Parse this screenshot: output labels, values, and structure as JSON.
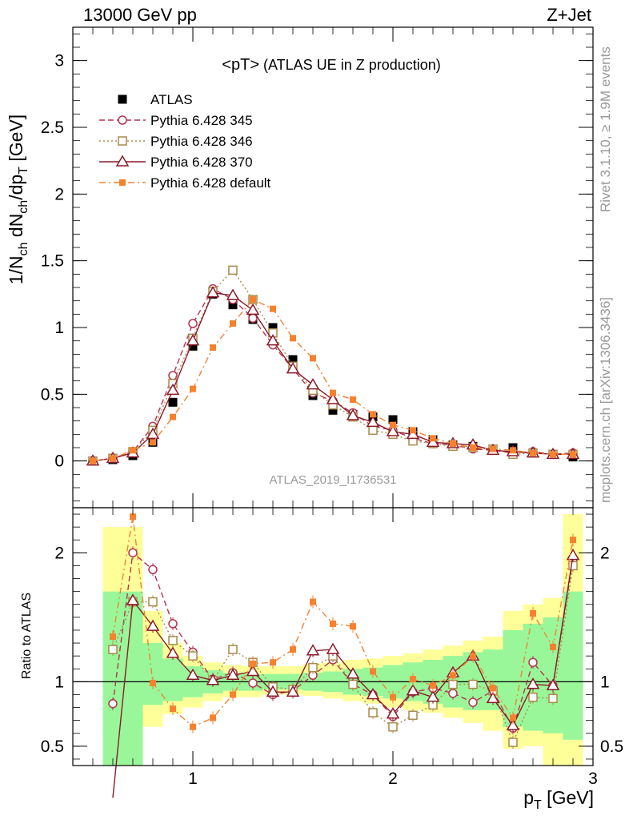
{
  "header": {
    "left": "13000 GeV pp",
    "right": "Z+Jet"
  },
  "plot_title": {
    "main": "<pT>",
    "sub": "(ATLAS UE in Z production)"
  },
  "side_labels": {
    "rivet": "Rivet 3.1.10, ≥ 1.9M events",
    "mcplots": "mcplots.cern.ch [arXiv:1306.3436]"
  },
  "watermark": "ATLAS_2019_I1736531",
  "axes": {
    "ylabel_main": "1/N_ch dN_ch/dp_T [GeV]",
    "ylabel_ratio": "Ratio to ATLAS",
    "xlabel": "p_T [GeV]"
  },
  "colors": {
    "data": "#000000",
    "p345": "#b4344f",
    "p346": "#a88a4c",
    "p370": "#8b1a2a",
    "pdef": "#f58230",
    "band_inner": "#99f799",
    "band_outer": "#ffff99"
  },
  "chart_data": [
    {
      "type": "line",
      "panel": "main",
      "xlim": [
        0.4,
        3.0
      ],
      "ylim": [
        -0.35,
        3.25
      ],
      "xticks": [
        1,
        2,
        3
      ],
      "yticks": [
        0,
        0.5,
        1,
        1.5,
        2,
        2.5,
        3
      ],
      "ytick_labels": [
        "0",
        "0.5",
        "1",
        "1.5",
        "2",
        "2.5",
        "3"
      ],
      "x": [
        0.5,
        0.6,
        0.7,
        0.8,
        0.9,
        1.0,
        1.1,
        1.2,
        1.3,
        1.4,
        1.5,
        1.6,
        1.7,
        1.8,
        1.9,
        2.0,
        2.1,
        2.2,
        2.3,
        2.4,
        2.5,
        2.6,
        2.7,
        2.8,
        2.9
      ],
      "legend": "top-left",
      "series": [
        {
          "name": "ATLAS",
          "style": "data",
          "values": [
            0.0,
            0.01,
            0.04,
            0.14,
            0.44,
            0.86,
            1.25,
            1.17,
            1.06,
            1.0,
            0.76,
            0.49,
            0.38,
            0.35,
            0.33,
            0.31,
            0.22,
            0.16,
            0.12,
            0.11,
            0.09,
            0.1,
            0.06,
            0.05,
            0.03
          ]
        },
        {
          "name": "Pythia 6.428 345",
          "style": "p345",
          "values": [
            0.0,
            0.02,
            0.07,
            0.26,
            0.64,
            1.03,
            1.29,
            1.21,
            1.07,
            0.87,
            0.69,
            0.51,
            0.45,
            0.36,
            0.26,
            0.23,
            0.17,
            0.13,
            0.12,
            0.09,
            0.08,
            0.06,
            0.07,
            0.05,
            0.06
          ]
        },
        {
          "name": "Pythia 6.428 346",
          "style": "p346",
          "values": [
            0.0,
            0.02,
            0.07,
            0.23,
            0.58,
            0.92,
            1.27,
            1.43,
            1.21,
            0.96,
            0.71,
            0.53,
            0.42,
            0.33,
            0.23,
            0.2,
            0.15,
            0.13,
            0.11,
            0.1,
            0.09,
            0.05,
            0.06,
            0.05,
            0.05
          ]
        },
        {
          "name": "Pythia 6.428 370",
          "style": "p370",
          "values": [
            0.0,
            0.02,
            0.06,
            0.2,
            0.53,
            0.9,
            1.26,
            1.24,
            1.13,
            0.9,
            0.69,
            0.57,
            0.46,
            0.34,
            0.29,
            0.22,
            0.2,
            0.14,
            0.13,
            0.12,
            0.08,
            0.07,
            0.06,
            0.05,
            0.05
          ]
        },
        {
          "name": "Pythia 6.428 default",
          "style": "pdef",
          "values": [
            0.0,
            0.02,
            0.08,
            0.14,
            0.33,
            0.54,
            0.85,
            1.03,
            1.21,
            1.14,
            0.92,
            0.77,
            0.51,
            0.46,
            0.35,
            0.27,
            0.23,
            0.17,
            0.13,
            0.1,
            0.09,
            0.08,
            0.06,
            0.05,
            0.05
          ]
        }
      ]
    },
    {
      "type": "line",
      "panel": "ratio",
      "xlim": [
        0.4,
        3.0
      ],
      "ylim": [
        0.35,
        2.35
      ],
      "xticks": [
        1,
        2,
        3
      ],
      "xtick_labels": [
        "1",
        "2",
        "3"
      ],
      "yticks": [
        0.5,
        1,
        2
      ],
      "ytick_labels": [
        "0.5",
        "1",
        "2"
      ],
      "x": [
        0.6,
        0.7,
        0.8,
        0.9,
        1.0,
        1.1,
        1.2,
        1.3,
        1.4,
        1.5,
        1.6,
        1.7,
        1.8,
        1.9,
        2.0,
        2.1,
        2.2,
        2.3,
        2.4,
        2.5,
        2.6,
        2.7,
        2.8,
        2.9
      ],
      "band_edges": [
        0.55,
        0.65,
        0.75,
        0.85,
        0.95,
        1.05,
        1.15,
        1.25,
        1.35,
        1.45,
        1.55,
        1.65,
        1.75,
        1.85,
        1.95,
        2.05,
        2.15,
        2.25,
        2.35,
        2.45,
        2.55,
        2.65,
        2.75,
        2.85,
        2.95
      ],
      "band_inner_lo": [
        0.0,
        0.0,
        0.82,
        0.85,
        0.88,
        0.91,
        0.93,
        0.93,
        0.94,
        0.94,
        0.93,
        0.92,
        0.9,
        0.89,
        0.87,
        0.85,
        0.83,
        0.8,
        0.78,
        0.78,
        0.65,
        0.62,
        0.6,
        0.55
      ],
      "band_inner_hi": [
        1.7,
        1.7,
        1.3,
        1.18,
        1.12,
        1.09,
        1.07,
        1.06,
        1.06,
        1.06,
        1.07,
        1.08,
        1.1,
        1.11,
        1.13,
        1.15,
        1.17,
        1.2,
        1.23,
        1.25,
        1.4,
        1.45,
        1.5,
        1.7
      ],
      "band_outer_lo": [
        0.0,
        0.0,
        0.65,
        0.75,
        0.8,
        0.85,
        0.88,
        0.88,
        0.9,
        0.9,
        0.89,
        0.87,
        0.85,
        0.83,
        0.8,
        0.78,
        0.76,
        0.72,
        0.68,
        0.62,
        0.48,
        0.5,
        0.3,
        0.3
      ],
      "band_outer_hi": [
        2.2,
        2.2,
        1.55,
        1.3,
        1.2,
        1.15,
        1.13,
        1.12,
        1.12,
        1.12,
        1.14,
        1.15,
        1.17,
        1.18,
        1.2,
        1.22,
        1.25,
        1.28,
        1.32,
        1.35,
        1.55,
        1.6,
        1.65,
        2.3
      ],
      "series": [
        {
          "name": "ATLAS",
          "style": "data",
          "values": [
            1,
            1,
            1,
            1,
            1,
            1,
            1,
            1,
            1,
            1,
            1,
            1,
            1,
            1,
            1,
            1,
            1,
            1,
            1,
            1,
            1,
            1,
            1,
            1
          ]
        },
        {
          "name": "Pythia 6.428 345",
          "style": "p345",
          "values": [
            0.83,
            2.0,
            1.87,
            1.45,
            1.23,
            1.02,
            1.07,
            0.99,
            0.9,
            0.93,
            1.05,
            1.17,
            0.98,
            0.9,
            0.73,
            0.92,
            0.95,
            0.91,
            0.84,
            0.93,
            0.64,
            1.15,
            0.97,
            1.95
          ]
        },
        {
          "name": "Pythia 6.428 346",
          "style": "p346",
          "values": [
            1.25,
            1.62,
            1.62,
            1.32,
            1.2,
            1.01,
            1.25,
            1.15,
            0.96,
            0.94,
            1.11,
            1.2,
            0.98,
            0.76,
            0.65,
            0.74,
            0.82,
            0.98,
            0.98,
            0.93,
            0.53,
            0.88,
            0.87,
            1.9
          ]
        },
        {
          "name": "Pythia 6.428 370",
          "style": "p370",
          "values": [
            0.1,
            1.63,
            1.43,
            1.22,
            1.05,
            1.01,
            1.05,
            1.08,
            0.92,
            0.92,
            1.24,
            1.25,
            1.06,
            0.9,
            0.75,
            0.93,
            0.88,
            1.07,
            1.2,
            0.87,
            0.66,
            0.98,
            0.97,
            1.98
          ]
        },
        {
          "name": "Pythia 6.428 default",
          "style": "pdef",
          "values": [
            1.35,
            2.28,
            0.99,
            0.79,
            0.65,
            0.72,
            0.9,
            1.14,
            1.15,
            1.25,
            1.62,
            1.45,
            1.43,
            1.08,
            0.88,
            1.02,
            0.97,
            1.05,
            1.2,
            0.95,
            0.72,
            1.53,
            1.27,
            2.1
          ]
        }
      ]
    }
  ]
}
